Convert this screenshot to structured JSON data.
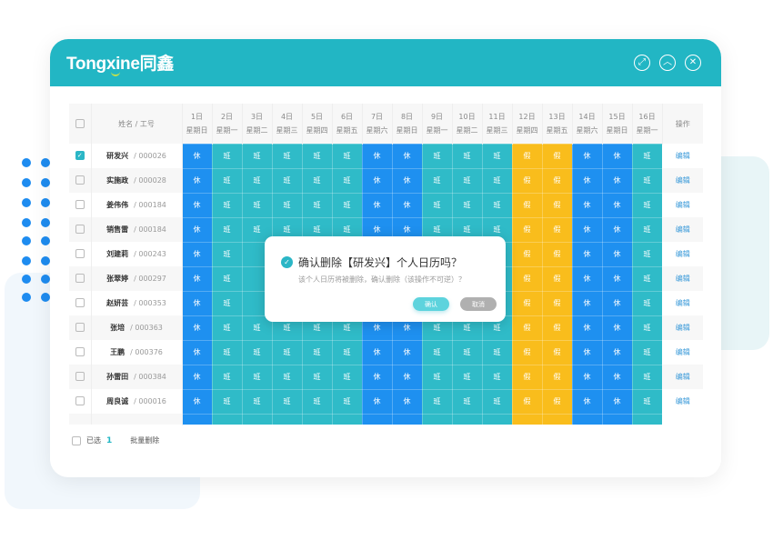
{
  "colors": {
    "header": "#22b6c4",
    "rest": "#1e90f0",
    "work": "#2fbbc8",
    "holiday": "#f9bd1c",
    "link": "#3a9ad9"
  },
  "app": {
    "logo": "Tongxine同鑫",
    "window_icons": [
      "expand-icon",
      "collapse-up-icon",
      "close-icon"
    ]
  },
  "table": {
    "name_header": "姓名 / 工号",
    "op_header": "操作",
    "days": [
      {
        "date": "1日",
        "weekday": "星期日"
      },
      {
        "date": "2日",
        "weekday": "星期一"
      },
      {
        "date": "3日",
        "weekday": "星期二"
      },
      {
        "date": "4日",
        "weekday": "星期三"
      },
      {
        "date": "5日",
        "weekday": "星期四"
      },
      {
        "date": "6日",
        "weekday": "星期五"
      },
      {
        "date": "7日",
        "weekday": "星期六"
      },
      {
        "date": "8日",
        "weekday": "星期日"
      },
      {
        "date": "9日",
        "weekday": "星期一"
      },
      {
        "date": "10日",
        "weekday": "星期二"
      },
      {
        "date": "11日",
        "weekday": "星期三"
      },
      {
        "date": "12日",
        "weekday": "星期四"
      },
      {
        "date": "13日",
        "weekday": "星期五"
      },
      {
        "date": "14日",
        "weekday": "星期六"
      },
      {
        "date": "15日",
        "weekday": "星期日"
      },
      {
        "date": "16日",
        "weekday": "星期一"
      }
    ],
    "schedule": [
      "休",
      "班",
      "班",
      "班",
      "班",
      "班",
      "休",
      "休",
      "班",
      "班",
      "班",
      "假",
      "假",
      "休",
      "休",
      "班"
    ],
    "edit_label": "编辑",
    "rows": [
      {
        "name": "研发兴",
        "id": "/ 000026",
        "checked": true
      },
      {
        "name": "实施政",
        "id": "/ 000028",
        "checked": false
      },
      {
        "name": "姜伟伟",
        "id": "/ 000184",
        "checked": false
      },
      {
        "name": "销售雷",
        "id": "/ 000184",
        "checked": false
      },
      {
        "name": "刘建莉",
        "id": "/ 000243",
        "checked": false
      },
      {
        "name": "张翠婷",
        "id": "/ 000297",
        "checked": false
      },
      {
        "name": "赵妍芸",
        "id": "/ 000353",
        "checked": false
      },
      {
        "name": "张培",
        "id": "/ 000363",
        "checked": false
      },
      {
        "name": "王鹏",
        "id": "/ 000376",
        "checked": false
      },
      {
        "name": "孙雷田",
        "id": "/ 000384",
        "checked": false
      },
      {
        "name": "周良诚",
        "id": "/ 000016",
        "checked": false
      }
    ]
  },
  "footer": {
    "selected_label": "已选",
    "selected_count": "1",
    "batch_delete": "批量删除"
  },
  "modal": {
    "title": "确认删除【研发兴】个人日历吗？",
    "message": "该个人日历将被删除，确认删除（该操作不可逆）？",
    "confirm": "确认",
    "cancel": "取消"
  }
}
